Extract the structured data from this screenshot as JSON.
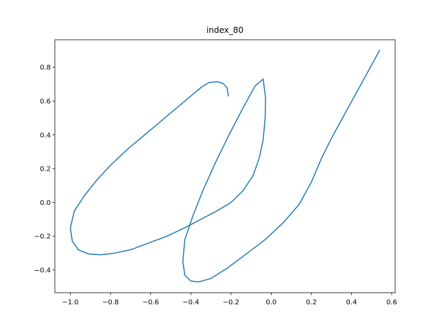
{
  "chart_data": {
    "type": "line",
    "title": "index_80",
    "xlabel": "",
    "ylabel": "",
    "xlim": [
      -1.077,
      0.617
    ],
    "ylim": [
      -0.534,
      0.963
    ],
    "x_ticks": [
      "−1.0",
      "−0.8",
      "−0.6",
      "−0.4",
      "−0.2",
      "0.0",
      "0.2",
      "0.4",
      "0.6"
    ],
    "x_tick_values": [
      -1.0,
      -0.8,
      -0.6,
      -0.4,
      -0.2,
      0.0,
      0.2,
      0.4,
      0.6
    ],
    "y_ticks": [
      "−0.4",
      "−0.2",
      "0.0",
      "0.2",
      "0.4",
      "0.6",
      "0.8"
    ],
    "y_tick_values": [
      -0.4,
      -0.2,
      0.0,
      0.2,
      0.4,
      0.6,
      0.8
    ],
    "grid": false,
    "series": [
      {
        "color": "#1f77b4",
        "x": [
          -0.213,
          -0.22,
          -0.24,
          -0.27,
          -0.31,
          -0.35,
          -0.41,
          -0.48,
          -0.56,
          -0.64,
          -0.72,
          -0.8,
          -0.87,
          -0.93,
          -0.98,
          -1.0,
          -0.99,
          -0.96,
          -0.91,
          -0.85,
          -0.78,
          -0.7,
          -0.61,
          -0.52,
          -0.43,
          -0.35,
          -0.27,
          -0.2,
          -0.14,
          -0.09,
          -0.06,
          -0.04,
          -0.03,
          -0.028,
          -0.04,
          -0.08,
          -0.14,
          -0.21,
          -0.28,
          -0.34,
          -0.39,
          -0.43,
          -0.44,
          -0.43,
          -0.4,
          -0.36,
          -0.3,
          -0.22,
          -0.13,
          -0.03,
          0.06,
          0.14,
          0.2,
          0.25,
          0.3,
          0.36,
          0.42,
          0.48,
          0.54
        ],
        "y": [
          0.63,
          0.68,
          0.705,
          0.715,
          0.71,
          0.68,
          0.62,
          0.55,
          0.47,
          0.39,
          0.31,
          0.22,
          0.13,
          0.04,
          -0.05,
          -0.15,
          -0.23,
          -0.28,
          -0.305,
          -0.31,
          -0.3,
          -0.28,
          -0.24,
          -0.2,
          -0.15,
          -0.1,
          -0.05,
          0.0,
          0.07,
          0.16,
          0.26,
          0.37,
          0.5,
          0.62,
          0.73,
          0.69,
          0.56,
          0.4,
          0.23,
          0.07,
          -0.08,
          -0.22,
          -0.35,
          -0.43,
          -0.465,
          -0.47,
          -0.45,
          -0.39,
          -0.31,
          -0.22,
          -0.12,
          -0.01,
          0.12,
          0.26,
          0.38,
          0.51,
          0.64,
          0.77,
          0.9
        ]
      }
    ]
  }
}
